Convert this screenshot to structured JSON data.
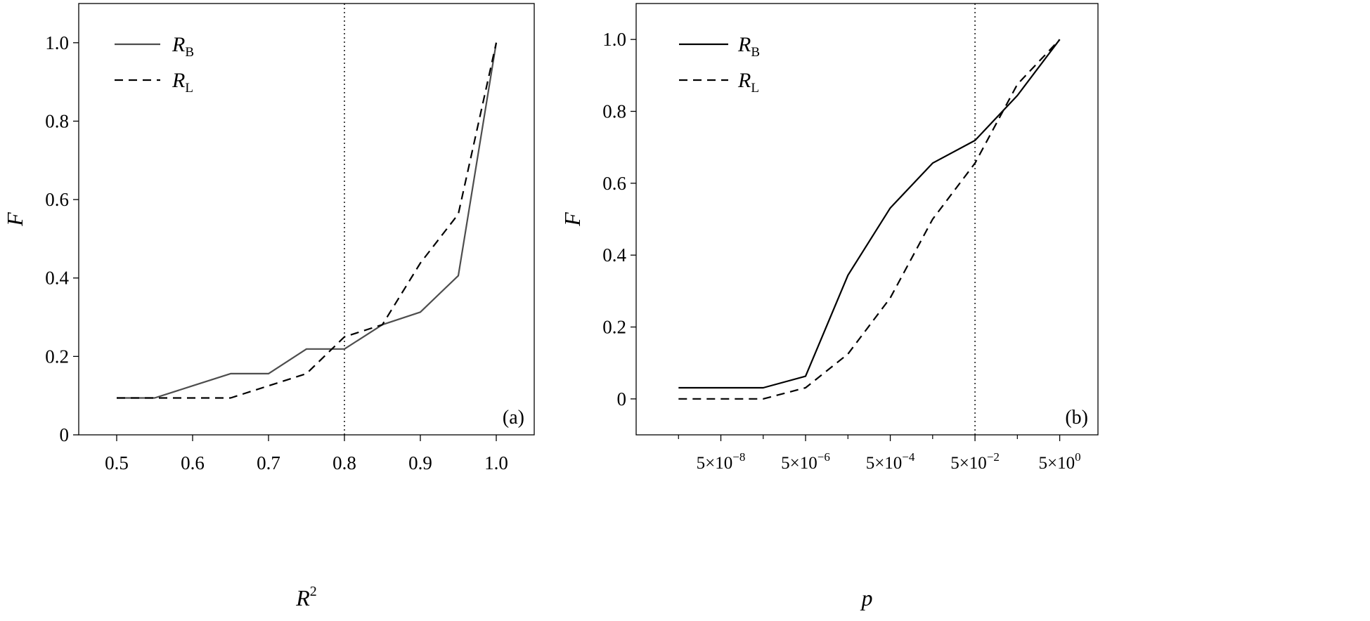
{
  "chart_data": [
    {
      "type": "line",
      "panel_label": "(a)",
      "xlabel": "R",
      "xlabel_sup": "2",
      "ylabel": "F",
      "xlim": [
        0.45,
        1.05
      ],
      "ylim": [
        0,
        1.1
      ],
      "x_ticks": [
        0.5,
        0.6,
        0.7,
        0.8,
        0.9,
        1.0
      ],
      "x_tick_labels": [
        "0.5",
        "0.6",
        "0.7",
        "0.8",
        "0.9",
        "1.0"
      ],
      "y_ticks": [
        0,
        0.2,
        0.4,
        0.6,
        0.8,
        1.0
      ],
      "y_tick_labels": [
        "0",
        "0.2",
        "0.4",
        "0.6",
        "0.8",
        "1.0"
      ],
      "reference_line_x": 0.8,
      "legend_position": "top-left",
      "series": [
        {
          "name": "R",
          "name_sub": "B",
          "style": "solid",
          "color": "#4d4d4d",
          "x": [
            0.5,
            0.55,
            0.6,
            0.65,
            0.7,
            0.75,
            0.8,
            0.85,
            0.9,
            0.95,
            1.0
          ],
          "y": [
            0.094,
            0.094,
            0.125,
            0.156,
            0.156,
            0.219,
            0.219,
            0.281,
            0.313,
            0.406,
            1.0
          ]
        },
        {
          "name": "R",
          "name_sub": "L",
          "style": "dashed",
          "color": "#000000",
          "x": [
            0.5,
            0.55,
            0.6,
            0.65,
            0.7,
            0.75,
            0.8,
            0.85,
            0.9,
            0.95,
            1.0
          ],
          "y": [
            0.094,
            0.094,
            0.094,
            0.094,
            0.125,
            0.156,
            0.25,
            0.281,
            0.438,
            0.563,
            1.0
          ]
        }
      ]
    },
    {
      "type": "line",
      "panel_label": "(b)",
      "xlabel": "p",
      "ylabel": "F",
      "x_scale": "log",
      "xlim": [
        5e-10,
        40
      ],
      "ylim": [
        -0.1,
        1.1
      ],
      "x_ticks": [
        5e-08,
        5e-06,
        0.0005,
        0.05,
        5
      ],
      "x_tick_labels_base": "5×10",
      "x_tick_label_exponents": [
        "−8",
        "−6",
        "−4",
        "−2",
        "0"
      ],
      "y_ticks": [
        0,
        0.2,
        0.4,
        0.6,
        0.8,
        1.0
      ],
      "y_tick_labels": [
        "0",
        "0.2",
        "0.4",
        "0.6",
        "0.8",
        "1.0"
      ],
      "reference_line_x": 0.05,
      "legend_position": "top-left",
      "series": [
        {
          "name": "R",
          "name_sub": "B",
          "style": "solid",
          "color": "#000000",
          "x": [
            5e-09,
            5e-07,
            5e-06,
            5e-05,
            0.0005,
            0.005,
            0.05,
            0.5,
            5
          ],
          "y": [
            0.031,
            0.031,
            0.063,
            0.344,
            0.531,
            0.656,
            0.719,
            0.844,
            1.0
          ]
        },
        {
          "name": "R",
          "name_sub": "L",
          "style": "dashed",
          "color": "#000000",
          "x": [
            5e-09,
            5e-07,
            5e-06,
            5e-05,
            0.0005,
            0.005,
            0.05,
            0.5,
            5
          ],
          "y": [
            0.0,
            0.0,
            0.031,
            0.125,
            0.281,
            0.5,
            0.656,
            0.875,
            1.0
          ]
        }
      ]
    }
  ]
}
